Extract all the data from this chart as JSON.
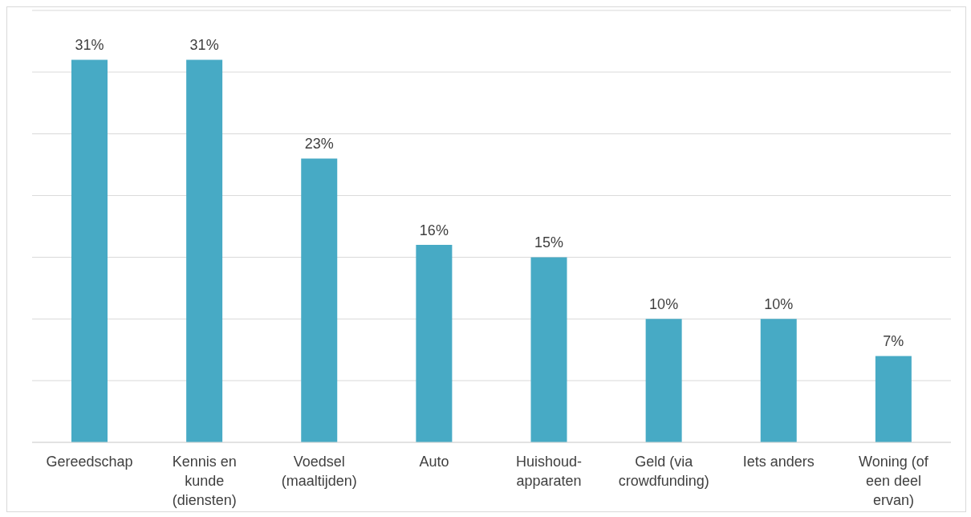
{
  "chart_data": {
    "type": "bar",
    "categories": [
      "Gereedschap",
      "Kennis en kunde (diensten)",
      "Voedsel (maaltijden)",
      "Auto",
      "Huishoud-apparaten",
      "Geld (via crowdfunding)",
      "Iets anders",
      "Woning (of een deel ervan)"
    ],
    "values": [
      31,
      31,
      23,
      16,
      15,
      10,
      10,
      7
    ],
    "value_labels": [
      "31%",
      "31%",
      "23%",
      "16%",
      "15%",
      "10%",
      "10%",
      "7%"
    ],
    "color": "#47aac5",
    "ylim": [
      0,
      35
    ],
    "yticks": [
      {
        "value": 0,
        "label": null
      },
      {
        "value": 5,
        "label": null
      },
      {
        "value": 10,
        "label": null
      },
      {
        "value": 15,
        "label": null
      },
      {
        "value": 20,
        "label": null
      },
      {
        "value": 25,
        "label": null
      },
      {
        "value": 30,
        "label": null
      },
      {
        "value": 35,
        "label": null
      }
    ],
    "grid": "y",
    "tick_labels": "x",
    "legend": false
  }
}
